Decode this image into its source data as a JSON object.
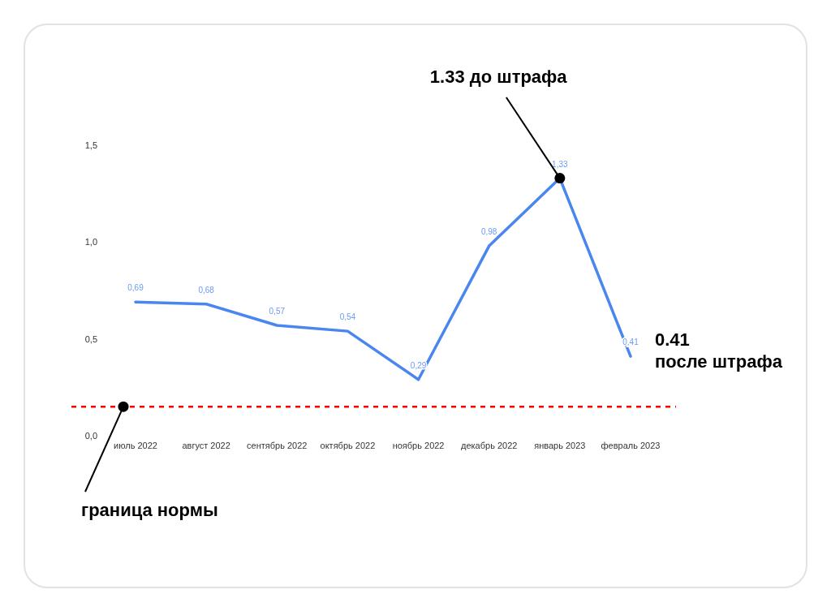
{
  "chart_data": {
    "type": "line",
    "categories": [
      "июль 2022",
      "август 2022",
      "сентябрь 2022",
      "октябрь 2022",
      "ноябрь 2022",
      "декабрь 2022",
      "январь 2023",
      "февраль 2023"
    ],
    "values": [
      0.69,
      0.68,
      0.57,
      0.54,
      0.29,
      0.98,
      1.33,
      0.41
    ],
    "value_labels": [
      "0,69",
      "0,68",
      "0,57",
      "0,54",
      "0,29",
      "0,98",
      "1,33",
      "0,41"
    ],
    "color": "#4a86f0",
    "ylim": [
      0,
      1.5
    ],
    "yticks": [
      {
        "value": 0,
        "label": "0,0"
      },
      {
        "value": 0.5,
        "label": "0,5"
      },
      {
        "value": 1,
        "label": "1,0"
      },
      {
        "value": 1.5,
        "label": "1,5"
      }
    ],
    "ref_lines": [
      {
        "axis": "y",
        "value": 0.15,
        "label": "граница нормы",
        "color": "#ff0000",
        "line_style": "dashed"
      }
    ],
    "annotations": [
      {
        "text": "1.33 до штрафа",
        "x": "январь 2023",
        "y": 1.33
      },
      {
        "text": "0.41\nпосле штрафа",
        "x": "февраль 2023",
        "y": 0.41
      }
    ]
  }
}
